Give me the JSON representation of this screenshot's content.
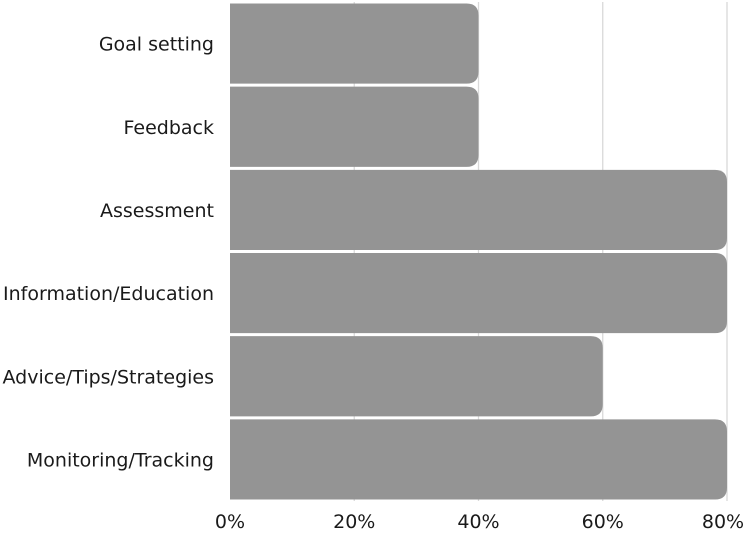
{
  "chart_data": {
    "type": "bar",
    "orientation": "horizontal",
    "categories": [
      "Goal setting",
      "Feedback",
      "Assessment",
      "Information/Education",
      "Advice/Tips/Strategies",
      "Monitoring/Tracking"
    ],
    "values": [
      40,
      40,
      80,
      80,
      60,
      80
    ],
    "x_ticks": [
      "0%",
      "20%",
      "40%",
      "60%",
      "80%"
    ],
    "xlim": [
      0,
      80
    ],
    "grid": true,
    "colors": {
      "bar": "#949494",
      "grid": "#d9d9d9",
      "text": "#1a1a1a"
    }
  }
}
